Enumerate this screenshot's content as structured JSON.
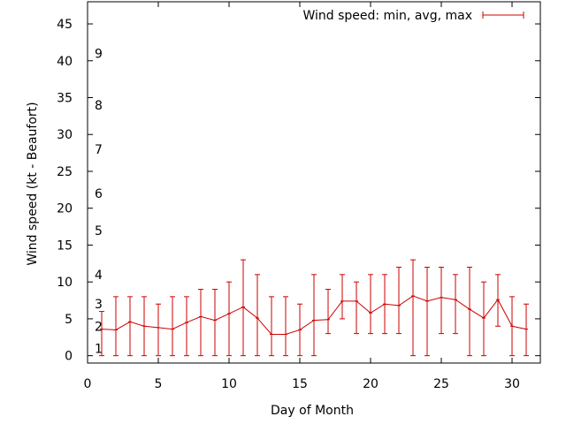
{
  "chart_data": {
    "type": "line",
    "title": "",
    "xlabel": "Day of Month",
    "ylabel": "Wind speed (kt - Beaufort)",
    "xlim": [
      0,
      32
    ],
    "ylim": [
      -1,
      48
    ],
    "xticks": [
      "0",
      "5",
      "10",
      "15",
      "20",
      "25",
      "30"
    ],
    "yticks": [
      "0",
      "5",
      "10",
      "15",
      "20",
      "25",
      "30",
      "35",
      "40",
      "45"
    ],
    "beaufort_labels": [
      {
        "label": "1",
        "y": 1
      },
      {
        "label": "2",
        "y": 4
      },
      {
        "label": "3",
        "y": 7
      },
      {
        "label": "4",
        "y": 11
      },
      {
        "label": "5",
        "y": 17
      },
      {
        "label": "6",
        "y": 22
      },
      {
        "label": "7",
        "y": 28
      },
      {
        "label": "8",
        "y": 34
      },
      {
        "label": "9",
        "y": 41
      }
    ],
    "legend": {
      "label": "Wind speed: min, avg, max",
      "position": "top-right"
    },
    "grid": false,
    "series": [
      {
        "name": "Wind speed: min, avg, max",
        "color": "#cc0000",
        "x": [
          1,
          2,
          3,
          4,
          5,
          6,
          7,
          8,
          9,
          10,
          11,
          12,
          13,
          14,
          15,
          16,
          17,
          18,
          19,
          20,
          21,
          22,
          23,
          24,
          25,
          26,
          27,
          28,
          29,
          30,
          31
        ],
        "avg": [
          3.6,
          3.5,
          4.6,
          4.0,
          3.8,
          3.6,
          4.5,
          5.3,
          4.8,
          5.7,
          6.6,
          5.1,
          2.9,
          2.9,
          3.5,
          4.8,
          4.9,
          7.4,
          7.4,
          5.8,
          7.0,
          6.8,
          8.1,
          7.4,
          7.9,
          7.6,
          6.3,
          5.1,
          7.6,
          4.0,
          3.6
        ],
        "min": [
          0,
          0,
          0,
          0,
          0,
          0,
          0,
          0,
          0,
          0,
          0,
          0,
          0,
          0,
          0,
          0,
          3,
          5,
          3,
          3,
          3,
          3,
          0,
          0,
          3,
          3,
          0,
          0,
          4,
          0,
          0
        ],
        "max": [
          6,
          8,
          8,
          8,
          7,
          8,
          8,
          9,
          9,
          10,
          13,
          11,
          8,
          8,
          7,
          11,
          9,
          11,
          10,
          11,
          11,
          12,
          13,
          12,
          12,
          11,
          12,
          10,
          11,
          8,
          7
        ]
      }
    ]
  }
}
